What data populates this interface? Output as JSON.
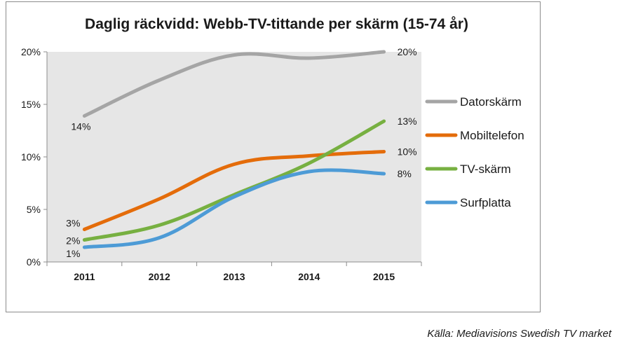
{
  "chart_data": {
    "type": "line",
    "title": "Daglig räckvidd: Webb-TV-tittande per skärm (15-74 år)",
    "xlabel": "",
    "ylabel": "",
    "categories": [
      "2011",
      "2012",
      "2013",
      "2014",
      "2015"
    ],
    "ylim": [
      0,
      20
    ],
    "yticks": [
      0,
      5,
      10,
      15,
      20
    ],
    "ytick_labels": [
      "0%",
      "5%",
      "10%",
      "15%",
      "20%"
    ],
    "grid": false,
    "legend_position": "right",
    "series": [
      {
        "name": "Datorskärm",
        "color": "#a5a5a5",
        "values": [
          13.9,
          17.3,
          19.7,
          19.4,
          20.0
        ],
        "labels": {
          "first": "14%",
          "last": "20%"
        }
      },
      {
        "name": "Mobiltelefon",
        "color": "#e46c0a",
        "values": [
          3.1,
          6.0,
          9.3,
          10.1,
          10.5
        ],
        "labels": {
          "first": "3%",
          "last": "10%"
        }
      },
      {
        "name": "TV-skärm",
        "color": "#77b041",
        "values": [
          2.1,
          3.5,
          6.4,
          9.4,
          13.4
        ],
        "labels": {
          "first": "2%",
          "last": "13%"
        }
      },
      {
        "name": "Surfplatta",
        "color": "#4d9bd6",
        "values": [
          1.4,
          2.3,
          6.2,
          8.6,
          8.4
        ],
        "labels": {
          "first": "1%",
          "last": "8%"
        }
      }
    ],
    "plot_background": "#e6e6e6"
  },
  "source_note": "Källa: Mediavisions Swedish TV market"
}
